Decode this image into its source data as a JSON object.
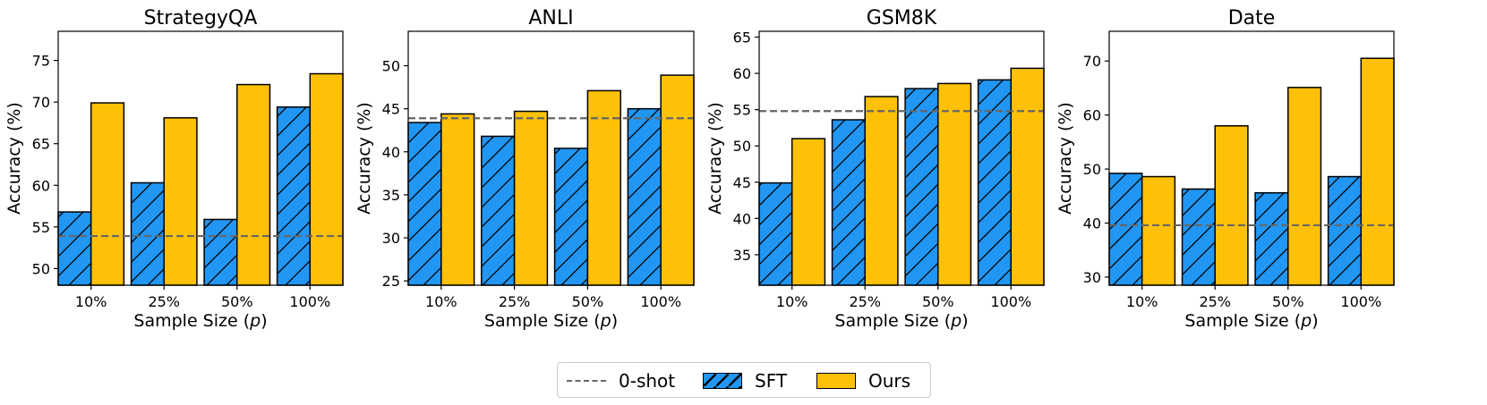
{
  "colors": {
    "sft": "#2196F3",
    "ours": "#FFC107",
    "zero_shot": "#666666",
    "edge": "#000000"
  },
  "legend": {
    "zero_shot_label": "0-shot",
    "sft_label": "SFT",
    "ours_label": "Ours",
    "placement": "lower-center"
  },
  "chart_data": [
    {
      "type": "bar",
      "title": "StrategyQA",
      "xlabel": "Sample Size (p)",
      "ylabel": "Accuracy (%)",
      "categories": [
        "10%",
        "25%",
        "50%",
        "100%"
      ],
      "ylim": [
        48,
        78.5
      ],
      "yticks": [
        50,
        55,
        60,
        65,
        70,
        75
      ],
      "series": [
        {
          "name": "SFT",
          "values": [
            56.8,
            60.3,
            55.9,
            69.4
          ]
        },
        {
          "name": "Ours",
          "values": [
            69.9,
            68.1,
            72.1,
            73.4
          ]
        }
      ],
      "zero_shot": 53.9
    },
    {
      "type": "bar",
      "title": "ANLI",
      "xlabel": "Sample Size (p)",
      "ylabel": "Accuracy (%)",
      "categories": [
        "10%",
        "25%",
        "50%",
        "100%"
      ],
      "ylim": [
        24.5,
        54
      ],
      "yticks": [
        25,
        30,
        35,
        40,
        45,
        50
      ],
      "series": [
        {
          "name": "SFT",
          "values": [
            43.4,
            41.8,
            40.4,
            45.0
          ]
        },
        {
          "name": "Ours",
          "values": [
            44.4,
            44.7,
            47.1,
            48.9
          ]
        }
      ],
      "zero_shot": 43.9
    },
    {
      "type": "bar",
      "title": "GSM8K",
      "xlabel": "Sample Size (p)",
      "ylabel": "Accuracy (%)",
      "categories": [
        "10%",
        "25%",
        "50%",
        "100%"
      ],
      "ylim": [
        30.8,
        65.8
      ],
      "yticks": [
        35,
        40,
        45,
        50,
        55,
        60,
        65
      ],
      "series": [
        {
          "name": "SFT",
          "values": [
            44.9,
            53.6,
            57.9,
            59.1
          ]
        },
        {
          "name": "Ours",
          "values": [
            51.0,
            56.8,
            58.6,
            60.7
          ]
        }
      ],
      "zero_shot": 54.8
    },
    {
      "type": "bar",
      "title": "Date",
      "xlabel": "Sample Size (p)",
      "ylabel": "Accuracy (%)",
      "categories": [
        "10%",
        "25%",
        "50%",
        "100%"
      ],
      "ylim": [
        28.5,
        75.5
      ],
      "yticks": [
        30,
        40,
        50,
        60,
        70
      ],
      "series": [
        {
          "name": "SFT",
          "values": [
            49.2,
            46.3,
            45.6,
            48.6
          ]
        },
        {
          "name": "Ours",
          "values": [
            48.6,
            58.0,
            65.1,
            70.5
          ]
        }
      ],
      "zero_shot": 39.6
    }
  ]
}
